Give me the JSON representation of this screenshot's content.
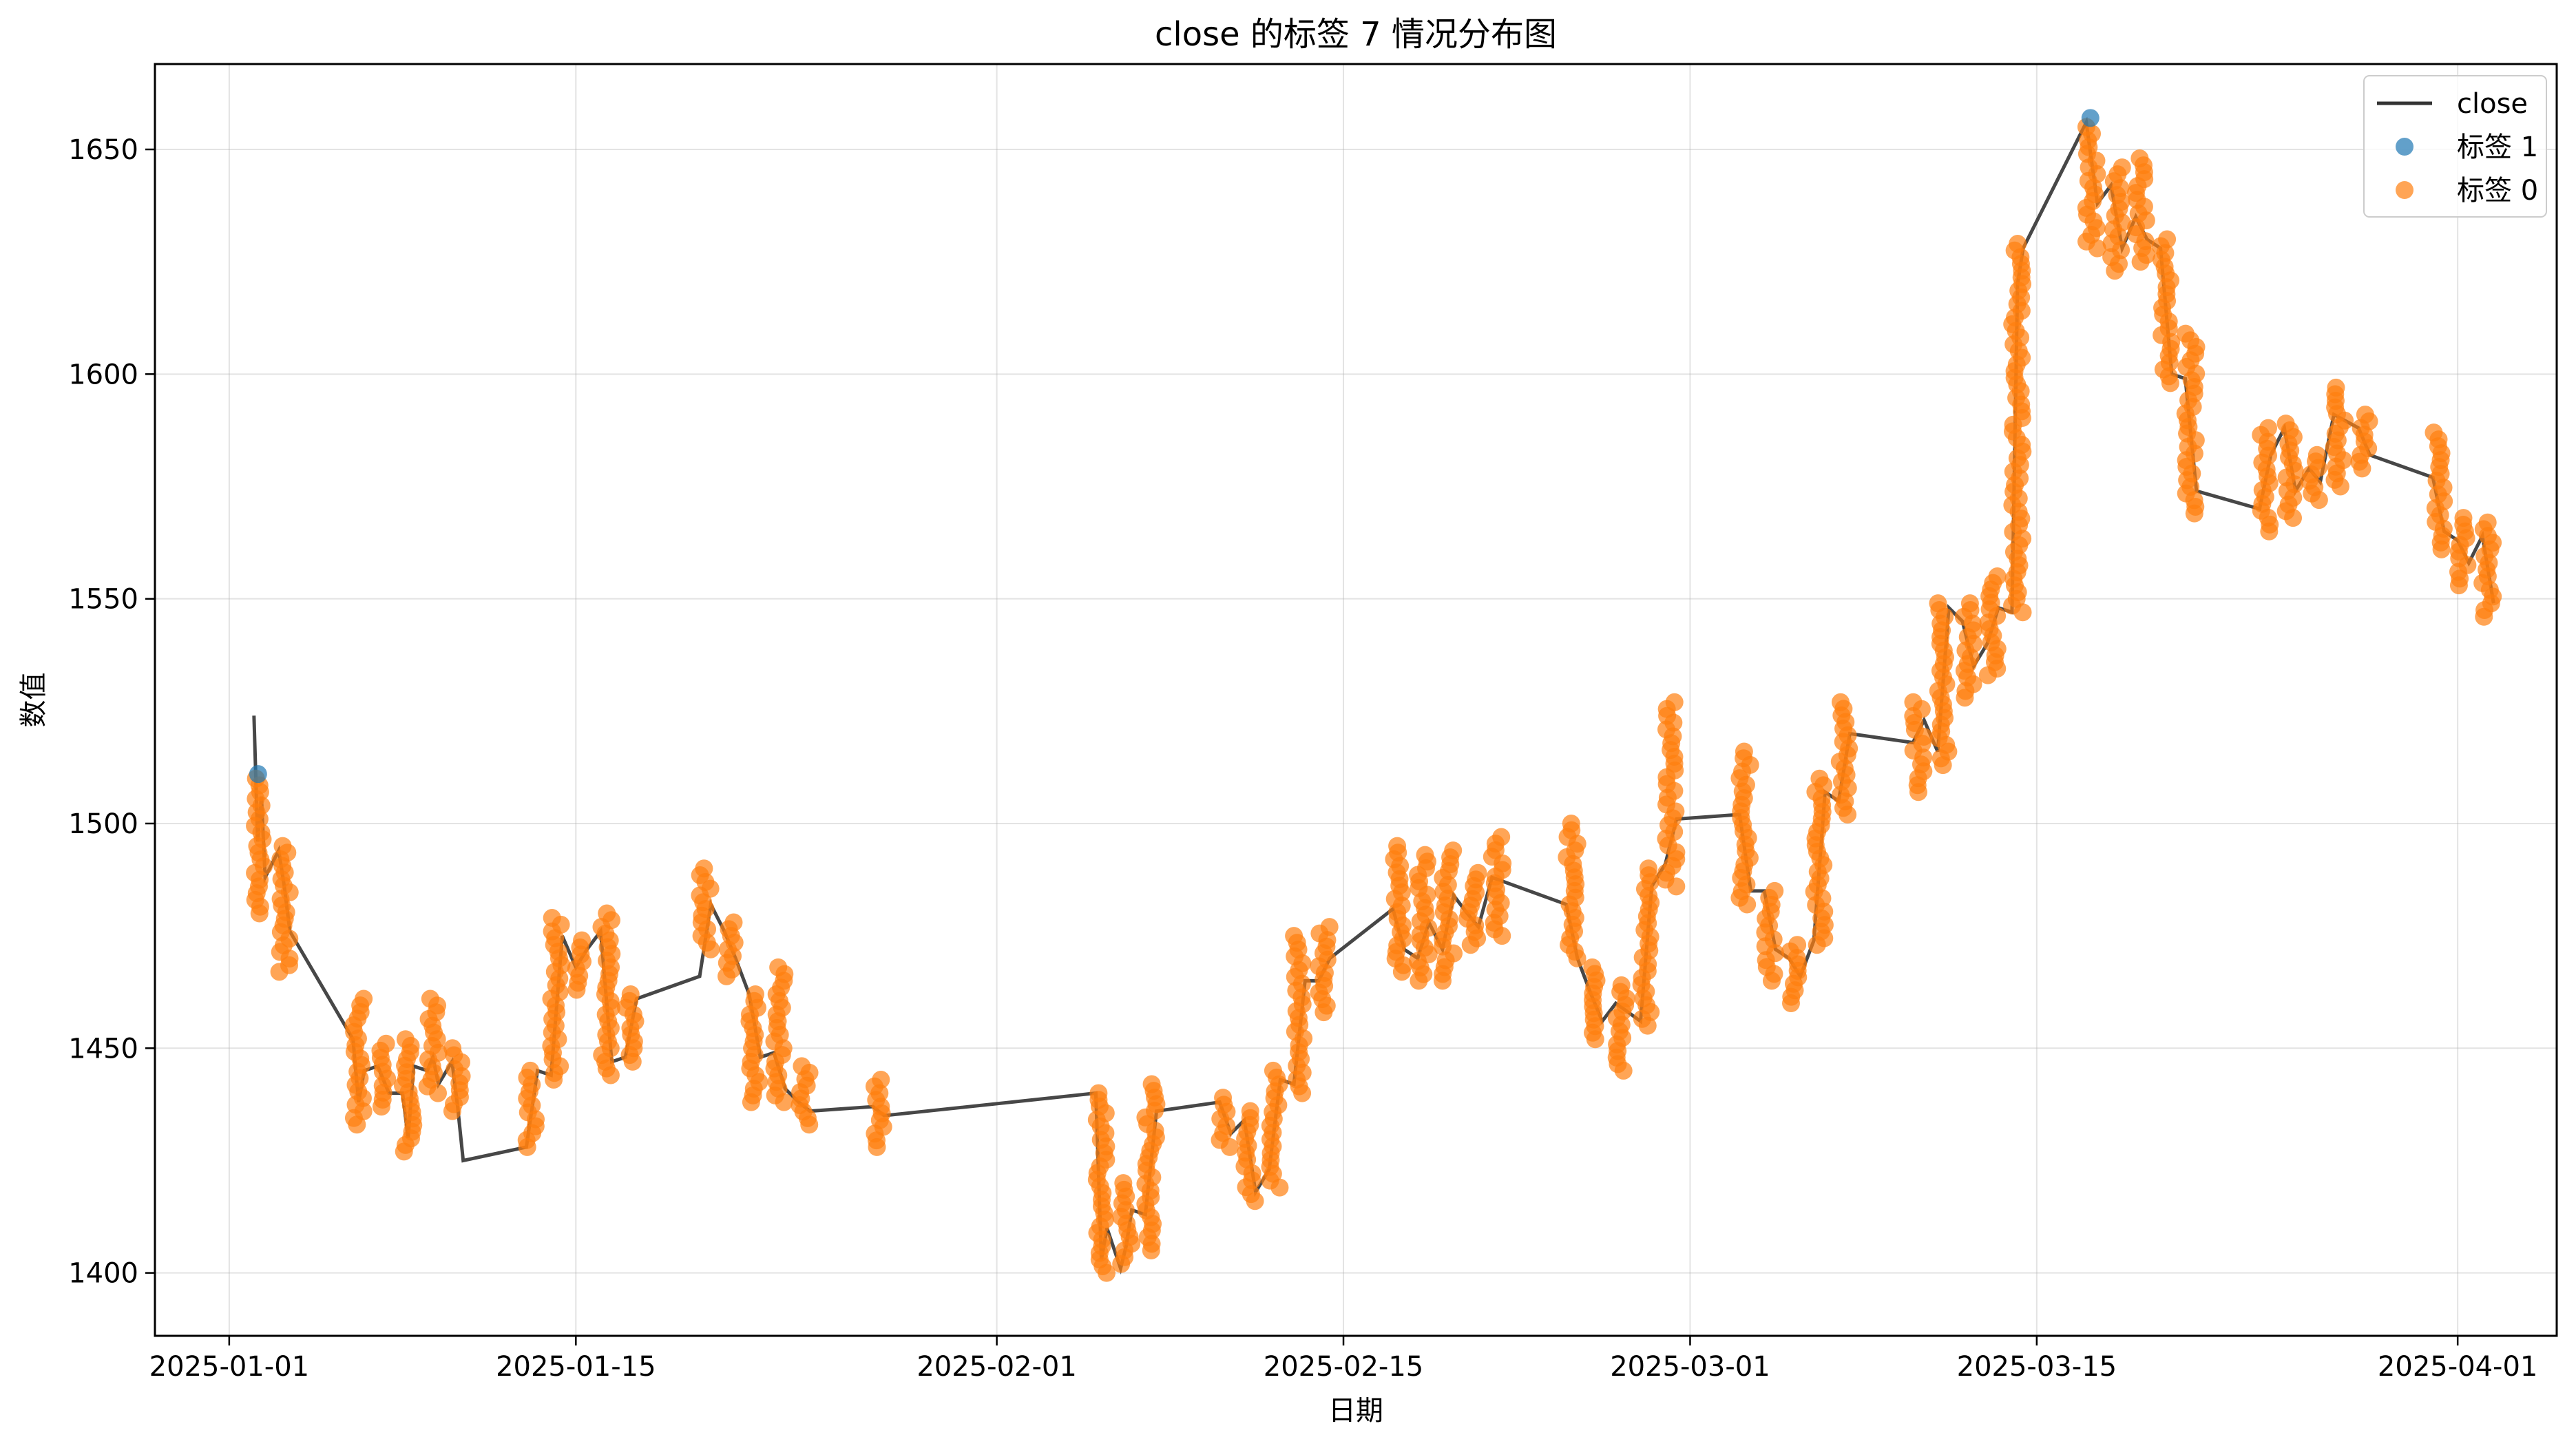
{
  "chart_data": {
    "type": "line+scatter",
    "title": "close 的标签 7 情况分布图",
    "xlabel": "日期",
    "ylabel": "数值",
    "xlim": [
      "2024-12-29",
      "2025-04-05"
    ],
    "ylim": [
      1386,
      1669
    ],
    "x_ticks": [
      "2025-01-01",
      "2025-01-15",
      "2025-02-01",
      "2025-02-15",
      "2025-03-01",
      "2025-03-15",
      "2025-04-01"
    ],
    "y_ticks": [
      1400,
      1450,
      1500,
      1550,
      1600,
      1650
    ],
    "grid": true,
    "legend_position": "top-right",
    "series": [
      {
        "name": "close",
        "kind": "line",
        "color": "#333333",
        "points": [
          [
            "2025-01-02",
            1524
          ],
          [
            "2025-01-02",
            1496
          ],
          [
            "2025-01-02",
            1506
          ],
          [
            "2025-01-02",
            1488
          ],
          [
            "2025-01-03",
            1494
          ],
          [
            "2025-01-03",
            1486
          ],
          [
            "2025-01-03",
            1476
          ],
          [
            "2025-01-06",
            1452
          ],
          [
            "2025-01-06",
            1438
          ],
          [
            "2025-01-06",
            1445
          ],
          [
            "2025-01-07",
            1446
          ],
          [
            "2025-01-07",
            1440
          ],
          [
            "2025-01-08",
            1440
          ],
          [
            "2025-01-08",
            1430
          ],
          [
            "2025-01-08",
            1446
          ],
          [
            "2025-01-09",
            1445
          ],
          [
            "2025-01-09",
            1448
          ],
          [
            "2025-01-09",
            1442
          ],
          [
            "2025-01-10",
            1447
          ],
          [
            "2025-01-10",
            1437
          ],
          [
            "2025-01-10",
            1425
          ],
          [
            "2025-01-13",
            1428
          ],
          [
            "2025-01-13",
            1445
          ],
          [
            "2025-01-14",
            1444
          ],
          [
            "2025-01-14",
            1475
          ],
          [
            "2025-01-15",
            1468
          ],
          [
            "2025-01-15",
            1472
          ],
          [
            "2025-01-16",
            1476
          ],
          [
            "2025-01-16",
            1447
          ],
          [
            "2025-01-17",
            1448
          ],
          [
            "2025-01-17",
            1461
          ],
          [
            "2025-01-20",
            1466
          ],
          [
            "2025-01-20",
            1482
          ],
          [
            "2025-01-21",
            1476
          ],
          [
            "2025-01-21",
            1470
          ],
          [
            "2025-01-22",
            1462
          ],
          [
            "2025-01-22",
            1448
          ],
          [
            "2025-01-23",
            1449
          ],
          [
            "2025-01-23",
            1441
          ],
          [
            "2025-01-24",
            1438
          ],
          [
            "2025-01-24",
            1436
          ],
          [
            "2025-01-27",
            1437
          ],
          [
            "2025-01-27",
            1435
          ],
          [
            "2025-02-05",
            1440
          ],
          [
            "2025-02-05",
            1403
          ],
          [
            "2025-02-05",
            1410
          ],
          [
            "2025-02-06",
            1401
          ],
          [
            "2025-02-06",
            1406
          ],
          [
            "2025-02-06",
            1414
          ],
          [
            "2025-02-07",
            1413
          ],
          [
            "2025-02-07",
            1436
          ],
          [
            "2025-02-10",
            1438
          ],
          [
            "2025-02-10",
            1431
          ],
          [
            "2025-02-11",
            1434
          ],
          [
            "2025-02-11",
            1418
          ],
          [
            "2025-02-12",
            1423
          ],
          [
            "2025-02-12",
            1443
          ],
          [
            "2025-02-13",
            1442
          ],
          [
            "2025-02-13",
            1465
          ],
          [
            "2025-02-14",
            1465
          ],
          [
            "2025-02-14",
            1470
          ],
          [
            "2025-02-17",
            1481
          ],
          [
            "2025-02-17",
            1472
          ],
          [
            "2025-02-18",
            1470
          ],
          [
            "2025-02-18",
            1478
          ],
          [
            "2025-02-19",
            1472
          ],
          [
            "2025-02-19",
            1484
          ],
          [
            "2025-02-20",
            1480
          ],
          [
            "2025-02-20",
            1477
          ],
          [
            "2025-02-21",
            1488
          ],
          [
            "2025-02-24",
            1482
          ],
          [
            "2025-02-24",
            1470
          ],
          [
            "2025-02-25",
            1462
          ],
          [
            "2025-02-25",
            1456
          ],
          [
            "2025-02-26",
            1460
          ],
          [
            "2025-02-27",
            1456
          ],
          [
            "2025-02-27",
            1486
          ],
          [
            "2025-02-28",
            1491
          ],
          [
            "2025-02-28",
            1501
          ],
          [
            "2025-03-03",
            1502
          ],
          [
            "2025-03-03",
            1485
          ],
          [
            "2025-03-04",
            1485
          ],
          [
            "2025-03-04",
            1472
          ],
          [
            "2025-03-05",
            1470
          ],
          [
            "2025-03-05",
            1466
          ],
          [
            "2025-03-06",
            1474
          ],
          [
            "2025-03-06",
            1507
          ],
          [
            "2025-03-07",
            1505
          ],
          [
            "2025-03-07",
            1520
          ],
          [
            "2025-03-10",
            1518
          ],
          [
            "2025-03-10",
            1523
          ],
          [
            "2025-03-11",
            1516
          ],
          [
            "2025-03-11",
            1548
          ],
          [
            "2025-03-12",
            1545
          ],
          [
            "2025-03-12",
            1535
          ],
          [
            "2025-03-13",
            1540
          ],
          [
            "2025-03-13",
            1548
          ],
          [
            "2025-03-14",
            1547
          ],
          [
            "2025-03-14",
            1620
          ],
          [
            "2025-03-14",
            1628
          ],
          [
            "2025-03-17",
            1656
          ],
          [
            "2025-03-17",
            1638
          ],
          [
            "2025-03-18",
            1642
          ],
          [
            "2025-03-18",
            1628
          ],
          [
            "2025-03-19",
            1635
          ],
          [
            "2025-03-19",
            1630
          ],
          [
            "2025-03-20",
            1628
          ],
          [
            "2025-03-20",
            1600
          ],
          [
            "2025-03-21",
            1599
          ],
          [
            "2025-03-21",
            1574
          ],
          [
            "2025-03-24",
            1570
          ],
          [
            "2025-03-24",
            1582
          ],
          [
            "2025-03-25",
            1588
          ],
          [
            "2025-03-25",
            1574
          ],
          [
            "2025-03-26",
            1579
          ],
          [
            "2025-03-26",
            1576
          ],
          [
            "2025-03-27",
            1591
          ],
          [
            "2025-03-28",
            1588
          ],
          [
            "2025-03-28",
            1582
          ],
          [
            "2025-03-31",
            1577
          ],
          [
            "2025-03-31",
            1565
          ],
          [
            "2025-04-01",
            1563
          ],
          [
            "2025-04-01",
            1558
          ],
          [
            "2025-04-02",
            1564
          ],
          [
            "2025-04-02",
            1549
          ]
        ]
      },
      {
        "name": "标签 1",
        "kind": "scatter",
        "color": "#1f77b4",
        "points": [
          [
            "2025-01-02",
            1511
          ],
          [
            "2025-03-17",
            1657
          ]
        ]
      },
      {
        "name": "标签 0",
        "kind": "scatter",
        "color": "#ff7f0e",
        "segments": [
          [
            "2025-01-02",
            1480,
            1510
          ],
          [
            "2025-01-03",
            1467,
            1495
          ],
          [
            "2025-01-06",
            1433,
            1461
          ],
          [
            "2025-01-07",
            1437,
            1451
          ],
          [
            "2025-01-08",
            1427,
            1452
          ],
          [
            "2025-01-09",
            1440,
            1461
          ],
          [
            "2025-01-10",
            1436,
            1450
          ],
          [
            "2025-01-13",
            1428,
            1445
          ],
          [
            "2025-01-14",
            1443,
            1479
          ],
          [
            "2025-01-15",
            1463,
            1474
          ],
          [
            "2025-01-16",
            1444,
            1480
          ],
          [
            "2025-01-17",
            1447,
            1462
          ],
          [
            "2025-01-20",
            1472,
            1490
          ],
          [
            "2025-01-21",
            1466,
            1478
          ],
          [
            "2025-01-22",
            1438,
            1462
          ],
          [
            "2025-01-23",
            1438,
            1468
          ],
          [
            "2025-01-24",
            1433,
            1446
          ],
          [
            "2025-01-27",
            1428,
            1443
          ],
          [
            "2025-02-05",
            1400,
            1440
          ],
          [
            "2025-02-06",
            1402,
            1420
          ],
          [
            "2025-02-07",
            1405,
            1442
          ],
          [
            "2025-02-10",
            1428,
            1439
          ],
          [
            "2025-02-11",
            1416,
            1436
          ],
          [
            "2025-02-12",
            1419,
            1445
          ],
          [
            "2025-02-13",
            1440,
            1475
          ],
          [
            "2025-02-14",
            1458,
            1477
          ],
          [
            "2025-02-17",
            1467,
            1495
          ],
          [
            "2025-02-18",
            1465,
            1493
          ],
          [
            "2025-02-19",
            1465,
            1494
          ],
          [
            "2025-02-20",
            1473,
            1489
          ],
          [
            "2025-02-21",
            1475,
            1497
          ],
          [
            "2025-02-24",
            1470,
            1500
          ],
          [
            "2025-02-25",
            1452,
            1468
          ],
          [
            "2025-02-26",
            1445,
            1464
          ],
          [
            "2025-02-27",
            1455,
            1490
          ],
          [
            "2025-02-28",
            1486,
            1527
          ],
          [
            "2025-03-03",
            1482,
            1516
          ],
          [
            "2025-03-04",
            1465,
            1485
          ],
          [
            "2025-03-05",
            1460,
            1473
          ],
          [
            "2025-03-06",
            1473,
            1510
          ],
          [
            "2025-03-07",
            1502,
            1527
          ],
          [
            "2025-03-10",
            1507,
            1527
          ],
          [
            "2025-03-11",
            1513,
            1549
          ],
          [
            "2025-03-12",
            1528,
            1549
          ],
          [
            "2025-03-13",
            1533,
            1555
          ],
          [
            "2025-03-14",
            1547,
            1629
          ],
          [
            "2025-03-17",
            1628,
            1655
          ],
          [
            "2025-03-18",
            1623,
            1646
          ],
          [
            "2025-03-19",
            1625,
            1648
          ],
          [
            "2025-03-20",
            1598,
            1630
          ],
          [
            "2025-03-21",
            1569,
            1609
          ],
          [
            "2025-03-24",
            1565,
            1588
          ],
          [
            "2025-03-25",
            1568,
            1589
          ],
          [
            "2025-03-26",
            1572,
            1582
          ],
          [
            "2025-03-27",
            1575,
            1597
          ],
          [
            "2025-03-28",
            1579,
            1591
          ],
          [
            "2025-03-31",
            1561,
            1587
          ],
          [
            "2025-04-01",
            1553,
            1568
          ],
          [
            "2025-04-02",
            1546,
            1567
          ]
        ]
      }
    ]
  }
}
